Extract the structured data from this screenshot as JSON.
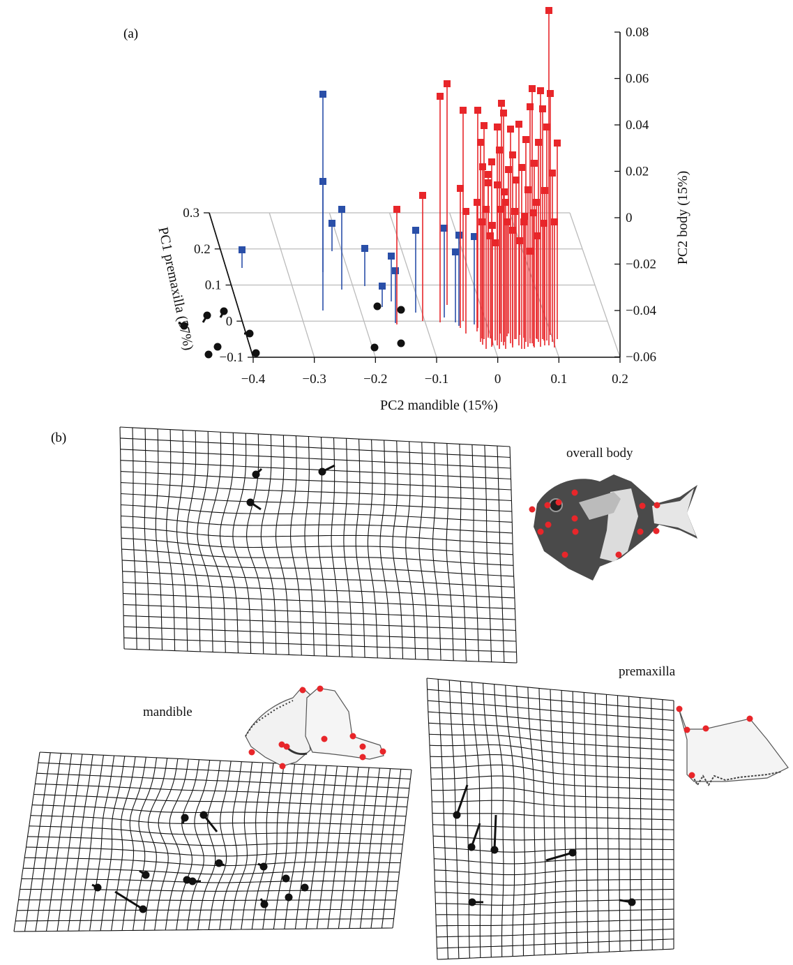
{
  "panels": {
    "a_label": "(a)",
    "b_label": "(b)"
  },
  "chart_data": {
    "type": "scatter3d",
    "x_axis": {
      "label": "PC2 mandible (15%)",
      "ticks": [
        "−0.4",
        "−0.3",
        "−0.2",
        "−0.1",
        "0",
        "0.1",
        "0.2"
      ],
      "range": [
        -0.4,
        0.2
      ]
    },
    "depth_axis": {
      "label": "PC1 premaxilla (57%)",
      "ticks": [
        "0.3",
        "0.2",
        "0.1",
        "0",
        "−0.1"
      ],
      "range": [
        -0.1,
        0.3
      ]
    },
    "z_axis": {
      "label": "PC2 body (15%)",
      "ticks": [
        "0.08",
        "0.06",
        "0.04",
        "0.02",
        "0",
        "−0.02",
        "−0.04",
        "−0.06"
      ],
      "range": [
        -0.06,
        0.08
      ]
    },
    "colors": {
      "blue": "#2a4fa8",
      "red": "#e8262a"
    },
    "grid": true
  },
  "deformation_labels": {
    "body": "overall body",
    "mandible": "mandible",
    "premaxilla": "premaxilla"
  }
}
